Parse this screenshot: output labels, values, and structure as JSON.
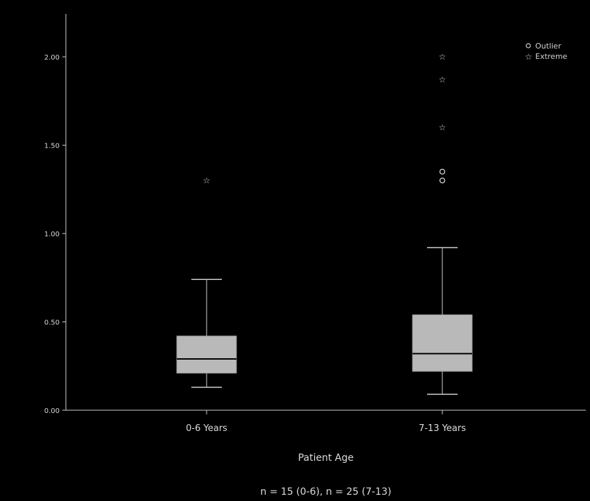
{
  "chart_data": {
    "type": "box",
    "ylabel": "",
    "xlabel": "Patient Age",
    "footnote": "n = 15 (0-6), n = 25 (7-13)",
    "ylim": [
      0,
      2.2
    ],
    "yticks": [
      {
        "value": 0,
        "label": "0.00"
      },
      {
        "value": 0.5,
        "label": "0.50"
      },
      {
        "value": 1.0,
        "label": "1.00"
      },
      {
        "value": 1.5,
        "label": "1.50"
      },
      {
        "value": 2.0,
        "label": "2.00"
      }
    ],
    "categories": [
      "0-6 Years",
      "7-13 Years"
    ],
    "boxes": [
      {
        "category": "0-6 Years",
        "whisker_low": 0.13,
        "q1": 0.21,
        "median": 0.29,
        "q3": 0.42,
        "whisker_high": 0.74,
        "outliers": [],
        "extremes": [
          1.3
        ]
      },
      {
        "category": "7-13 Years",
        "whisker_low": 0.09,
        "q1": 0.22,
        "median": 0.32,
        "q3": 0.54,
        "whisker_high": 0.92,
        "outliers": [
          1.3,
          1.35
        ],
        "extremes": [
          1.6,
          1.87,
          2.0
        ]
      }
    ],
    "legend": {
      "placement": "top-right",
      "entries": [
        {
          "symbol": "circle",
          "label": "Outlier"
        },
        {
          "symbol": "star",
          "label": "Extreme"
        }
      ]
    },
    "colors": {
      "background": "#000000",
      "box_fill": "#b9b9b9",
      "box_edge": "#9a9a9a",
      "median": "#000000",
      "axis": "#cfcfcf",
      "text": "#dcdcdc"
    }
  }
}
